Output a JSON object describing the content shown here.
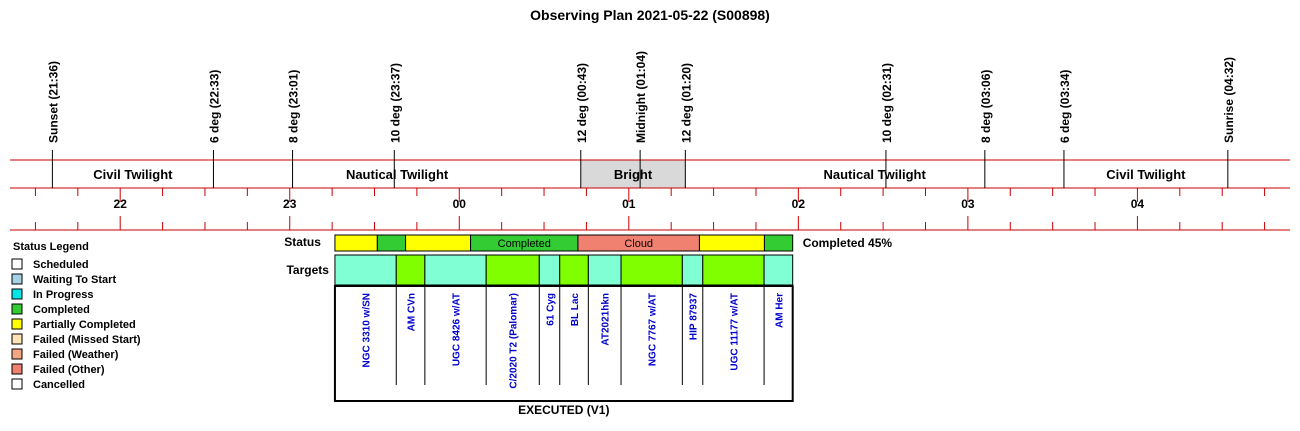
{
  "title": "Observing Plan 2021-05-22 (S00898)",
  "chart_data": {
    "type": "timeline",
    "time_axis": {
      "start": "21:21",
      "end": "04:54",
      "hour_labels": [
        "22",
        "23",
        "00",
        "01",
        "02",
        "03",
        "04"
      ],
      "minor_tick_minutes": 15
    },
    "events": [
      {
        "label": "Sunset (21:36)",
        "time": "21:36"
      },
      {
        "label": "6 deg (22:33)",
        "time": "22:33"
      },
      {
        "label": "8 deg (23:01)",
        "time": "23:01"
      },
      {
        "label": "10 deg (23:37)",
        "time": "23:37"
      },
      {
        "label": "12 deg (00:43)",
        "time": "00:43"
      },
      {
        "label": "Midnight (01:04)",
        "time": "01:04"
      },
      {
        "label": "12 deg (01:20)",
        "time": "01:20"
      },
      {
        "label": "10 deg (02:31)",
        "time": "02:31"
      },
      {
        "label": "8 deg (03:06)",
        "time": "03:06"
      },
      {
        "label": "6 deg (03:34)",
        "time": "03:34"
      },
      {
        "label": "Sunrise (04:32)",
        "time": "04:32"
      }
    ],
    "twilight_bands": [
      {
        "label": "Civil Twilight",
        "start": "21:36",
        "end": "22:33",
        "color": "#ffffff"
      },
      {
        "label": "Nautical Twilight",
        "start": "22:33",
        "end": "00:43",
        "color": "#ffffff"
      },
      {
        "label": "Bright",
        "start": "00:43",
        "end": "01:20",
        "color": "#d9d9d9"
      },
      {
        "label": "Nautical Twilight",
        "start": "01:20",
        "end": "03:34",
        "color": "#ffffff"
      },
      {
        "label": "Civil Twilight",
        "start": "03:34",
        "end": "04:32",
        "color": "#ffffff"
      }
    ],
    "status_segments": [
      {
        "start": "23:16",
        "end": "23:31",
        "status": "Partially Completed",
        "text": ""
      },
      {
        "start": "23:31",
        "end": "23:41",
        "status": "Completed",
        "text": ""
      },
      {
        "start": "23:41",
        "end": "00:04",
        "status": "Partially Completed",
        "text": ""
      },
      {
        "start": "00:04",
        "end": "00:42",
        "status": "Completed",
        "text": "Completed"
      },
      {
        "start": "00:42",
        "end": "01:25",
        "status": "Failed (Other)",
        "text": "Cloud"
      },
      {
        "start": "01:25",
        "end": "01:48",
        "status": "Partially Completed",
        "text": ""
      },
      {
        "start": "01:48",
        "end": "01:58",
        "status": "Completed",
        "text": ""
      }
    ],
    "targets": [
      {
        "name": "NGC 3310 w/SN",
        "start": "23:16",
        "end": "23:31",
        "color": "#80ffd4"
      },
      {
        "name": "AM CVn",
        "start": "23:31",
        "end": "23:38",
        "color": "#80ff00"
      },
      {
        "name": "UGC 8426 w/AT",
        "start": "23:38",
        "end": "23:53",
        "color": "#80ffd4"
      },
      {
        "name": "C/2020 T2 (Palomar)",
        "start": "23:53",
        "end": "00:06",
        "color": "#80ff00"
      },
      {
        "name": "61 Cyg",
        "start": "00:06",
        "end": "00:11",
        "color": "#80ffd4"
      },
      {
        "name": "BL Lac",
        "start": "00:11",
        "end": "00:18",
        "color": "#80ff00"
      },
      {
        "name": "AT2021hkn",
        "start": "00:18",
        "end": "00:26",
        "color": "#80ffd4"
      },
      {
        "name": "NGC 7767 w/AT",
        "start": "00:26",
        "end": "00:41",
        "color": "#80ff00"
      },
      {
        "name": "HIP 87937",
        "start": "00:41",
        "end": "00:46",
        "color": "#80ffd4"
      },
      {
        "name": "UGC 11177 w/AT",
        "start": "00:46",
        "end": "01:01",
        "color": "#80ff00"
      },
      {
        "name": "AM Her",
        "start": "01:01",
        "end": "01:08",
        "color": "#80ffd4"
      }
    ],
    "status_label": "Status",
    "targets_label": "Targets",
    "completion_text": "Completed 45%",
    "footer": "EXECUTED (V1)",
    "legend": {
      "title": "Status Legend",
      "items": [
        {
          "label": "Scheduled",
          "color": "#ffffff"
        },
        {
          "label": "Waiting To Start",
          "color": "#a6d2e6"
        },
        {
          "label": "In Progress",
          "color": "#00e5e5"
        },
        {
          "label": "Completed",
          "color": "#33cc33"
        },
        {
          "label": "Partially Completed",
          "color": "#ffff00"
        },
        {
          "label": "Failed (Missed Start)",
          "color": "#ffe4b5"
        },
        {
          "label": "Failed (Weather)",
          "color": "#f4a582"
        },
        {
          "label": "Failed (Other)",
          "color": "#f08070"
        },
        {
          "label": "Cancelled",
          "color": "#ffffff"
        }
      ]
    }
  }
}
